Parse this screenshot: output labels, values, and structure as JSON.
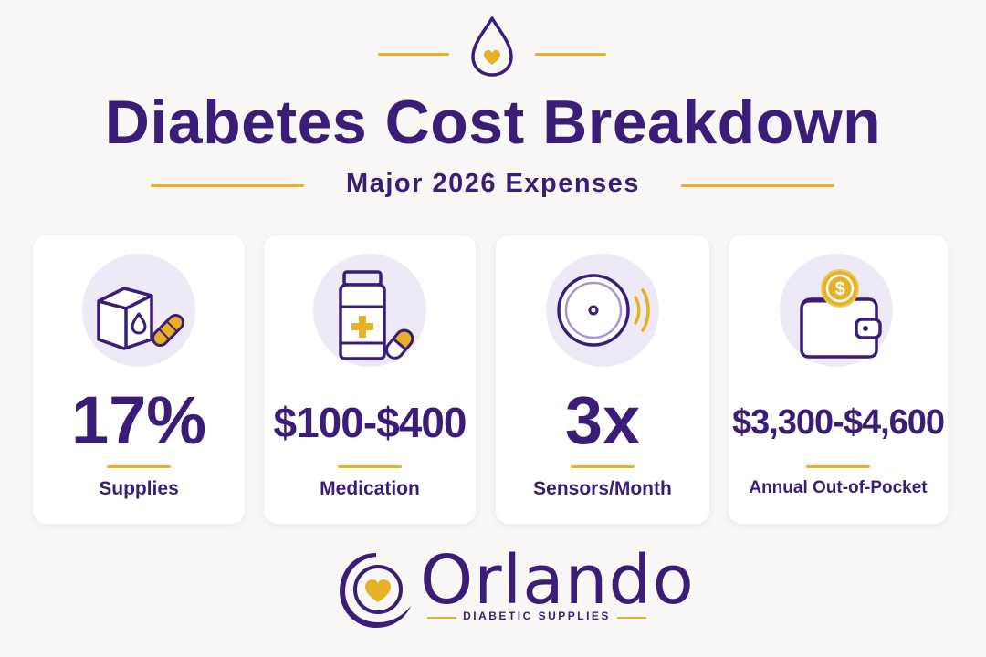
{
  "colors": {
    "primary": "#3b1d78",
    "accent": "#e7b127",
    "icon_circle": "#eee9f6",
    "background": "#f8f7f6"
  },
  "header": {
    "icon": "drop-heart-icon",
    "title": "Diabetes Cost Breakdown",
    "subtitle": "Major 2026 Expenses"
  },
  "cards": [
    {
      "icon": "supplies-box-icon",
      "value": "17%",
      "label": "Supplies"
    },
    {
      "icon": "medication-bottle-icon",
      "value": "$100-$400",
      "label": "Medication"
    },
    {
      "icon": "sensor-icon",
      "value": "3x",
      "label": "Sensors/Month"
    },
    {
      "icon": "wallet-coin-icon",
      "value": "$3,300-$4,600",
      "label": "Annual Out-of-Pocket"
    }
  ],
  "logo": {
    "icon": "heart-hand-icon",
    "name": "Orlando",
    "tagline": "DIABETIC SUPPLIES"
  }
}
